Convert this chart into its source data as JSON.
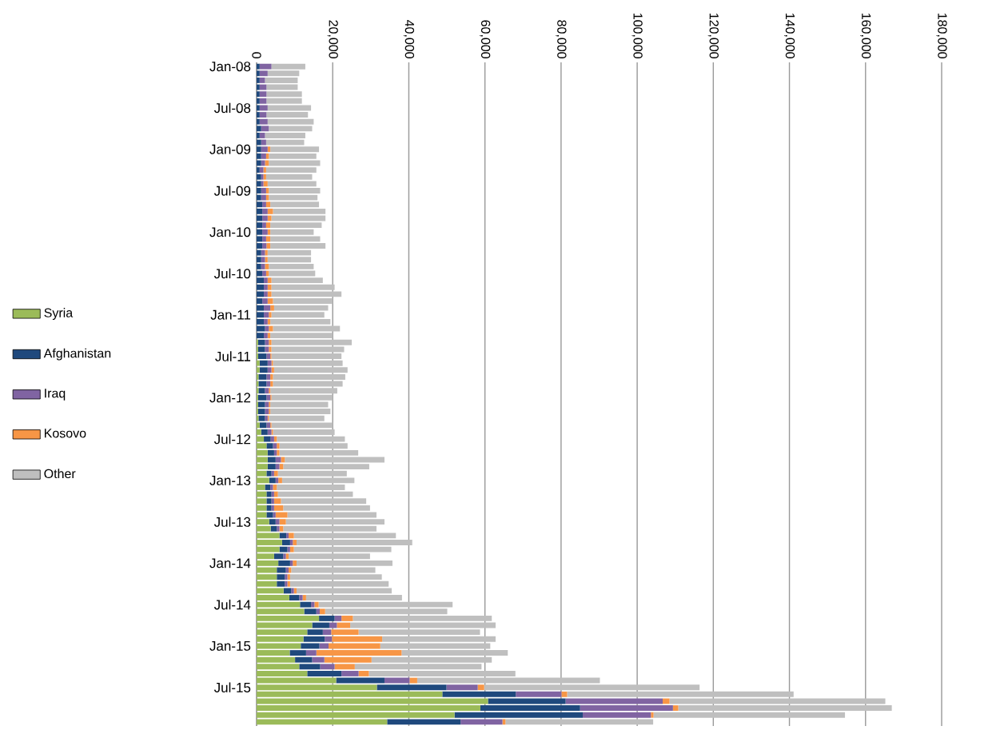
{
  "chart_data": {
    "type": "bar",
    "orientation": "horizontal",
    "stacked": true,
    "categories": [
      "Jan-08",
      null,
      null,
      null,
      null,
      null,
      "Jul-08",
      null,
      null,
      null,
      null,
      null,
      "Jan-09",
      null,
      null,
      null,
      null,
      null,
      "Jul-09",
      null,
      null,
      null,
      null,
      null,
      "Jan-10",
      null,
      null,
      null,
      null,
      null,
      "Jul-10",
      null,
      null,
      null,
      null,
      null,
      "Jan-11",
      null,
      null,
      null,
      null,
      null,
      "Jul-11",
      null,
      null,
      null,
      null,
      null,
      "Jan-12",
      null,
      null,
      null,
      null,
      null,
      "Jul-12",
      null,
      null,
      null,
      null,
      null,
      "Jan-13",
      null,
      null,
      null,
      null,
      null,
      "Jul-13",
      null,
      null,
      null,
      null,
      null,
      "Jan-14",
      null,
      null,
      null,
      null,
      null,
      "Jul-14",
      null,
      null,
      null,
      null,
      null,
      "Jan-15",
      null,
      null,
      null,
      null,
      null,
      "Jul-15",
      null,
      null,
      null,
      null,
      null
    ],
    "series": [
      {
        "name": "Syria",
        "color": "#9bbb59",
        "values": [
          0,
          0,
          0,
          0,
          0,
          0,
          0,
          0,
          0,
          0,
          0,
          0,
          0,
          0,
          0,
          0,
          0,
          0,
          0,
          0,
          0,
          0,
          0,
          0,
          0,
          0,
          0,
          0,
          0,
          0,
          0,
          0,
          0,
          0,
          0,
          0,
          0,
          0,
          0,
          0,
          400,
          400,
          400,
          800,
          800,
          500,
          500,
          500,
          400,
          400,
          400,
          500,
          800,
          1200,
          1900,
          2600,
          2900,
          2900,
          2900,
          2600,
          3300,
          2200,
          2600,
          2600,
          2600,
          2600,
          3300,
          3700,
          6000,
          6700,
          6000,
          4600,
          5700,
          5300,
          5300,
          5300,
          7100,
          8600,
          11400,
          12500,
          16400,
          14600,
          13300,
          12300,
          11600,
          8700,
          10100,
          11200,
          13300,
          20900,
          31600,
          48800,
          60800,
          58800,
          52000,
          34300
        ]
      },
      {
        "name": "Afghanistan",
        "color": "#1f497d",
        "values": [
          800,
          800,
          800,
          800,
          800,
          800,
          800,
          800,
          800,
          1200,
          800,
          1200,
          1200,
          1200,
          1200,
          800,
          1200,
          1200,
          1200,
          1200,
          1500,
          1500,
          1500,
          1500,
          1500,
          1500,
          1500,
          1200,
          1200,
          1200,
          1500,
          1900,
          1900,
          1900,
          1500,
          1900,
          1900,
          1900,
          2200,
          1900,
          1800,
          1800,
          2200,
          2100,
          2100,
          2100,
          2100,
          1700,
          2200,
          1800,
          1800,
          1700,
          1800,
          1700,
          1800,
          1700,
          1700,
          2100,
          2100,
          1300,
          1700,
          1400,
          1300,
          1300,
          1300,
          1700,
          1700,
          1600,
          1800,
          2100,
          2100,
          2400,
          3100,
          2400,
          2100,
          2100,
          2000,
          2600,
          2900,
          3200,
          4100,
          4500,
          4100,
          5600,
          4900,
          4300,
          4500,
          5500,
          9000,
          12700,
          18300,
          19300,
          20400,
          26200,
          33700,
          19300
        ]
      },
      {
        "name": "Iraq",
        "color": "#8064a2",
        "values": [
          3100,
          2100,
          1400,
          1800,
          1800,
          1800,
          2100,
          1800,
          2100,
          2000,
          1400,
          1300,
          1700,
          1300,
          1000,
          1000,
          600,
          600,
          1300,
          1300,
          1000,
          1400,
          1400,
          1000,
          1400,
          1000,
          1100,
          1000,
          1000,
          1000,
          1000,
          1000,
          1000,
          1000,
          1400,
          1700,
          1300,
          1000,
          1000,
          1000,
          1000,
          1000,
          1000,
          1000,
          1000,
          1000,
          1000,
          1000,
          1000,
          1000,
          1000,
          700,
          1000,
          1000,
          900,
          1000,
          700,
          1400,
          1000,
          700,
          700,
          700,
          700,
          700,
          700,
          700,
          1000,
          700,
          600,
          700,
          700,
          700,
          700,
          700,
          700,
          700,
          700,
          900,
          900,
          900,
          1800,
          2000,
          2200,
          1900,
          2400,
          2700,
          3200,
          3800,
          4500,
          6600,
          8200,
          12000,
          25500,
          24400,
          17900,
          11000
        ]
      },
      {
        "name": "Kosovo",
        "color": "#f79646",
        "values": [
          0,
          0,
          0,
          0,
          0,
          0,
          0,
          0,
          0,
          0,
          0,
          0,
          700,
          700,
          1000,
          700,
          700,
          1100,
          700,
          700,
          1100,
          1400,
          1000,
          1100,
          700,
          1100,
          1000,
          700,
          700,
          1000,
          700,
          1000,
          1000,
          1000,
          1400,
          1000,
          700,
          700,
          1100,
          700,
          700,
          700,
          300,
          400,
          700,
          700,
          700,
          400,
          300,
          400,
          400,
          300,
          300,
          400,
          700,
          700,
          700,
          1000,
          1000,
          1000,
          1000,
          1000,
          1000,
          1800,
          2400,
          3100,
          1700,
          1000,
          1400,
          1000,
          1000,
          700,
          1000,
          700,
          700,
          700,
          700,
          900,
          1100,
          1400,
          3000,
          3500,
          7200,
          13200,
          13600,
          22400,
          12400,
          5300,
          2700,
          2000,
          1700,
          1500,
          1800,
          1400,
          700,
          800
        ]
      },
      {
        "name": "Other",
        "color": "#bfbfbf",
        "values": [
          8900,
          8300,
          8600,
          8200,
          9300,
          9300,
          11400,
          10900,
          12100,
          11400,
          10600,
          10000,
          12800,
          12500,
          13500,
          13200,
          12100,
          12800,
          13500,
          12800,
          12800,
          13800,
          14200,
          13500,
          11400,
          13100,
          14500,
          11400,
          11400,
          11800,
          12200,
          13500,
          16600,
          18400,
          15700,
          14200,
          13900,
          15800,
          17600,
          16400,
          21100,
          19100,
          18400,
          18300,
          19300,
          19000,
          18300,
          17600,
          16100,
          15200,
          15800,
          14600,
          16100,
          16200,
          17900,
          17900,
          20700,
          26200,
          22600,
          18100,
          19000,
          17900,
          19700,
          22400,
          22800,
          23400,
          25900,
          24500,
          26800,
          30400,
          25600,
          21400,
          25200,
          22100,
          24100,
          25900,
          25000,
          25200,
          35200,
          32100,
          36500,
          38200,
          31900,
          29800,
          28900,
          27900,
          31600,
          33300,
          38500,
          48000,
          56600,
          59500,
          56700,
          56100,
          50300,
          38800
        ]
      }
    ],
    "xlim": [
      0,
      180000
    ],
    "xticks": [
      0,
      {
        "value": 20000,
        "label": "20,000"
      },
      {
        "value": 40000,
        "label": "40,000"
      },
      {
        "value": 60000,
        "label": "60,000"
      },
      {
        "value": 80000,
        "label": "80,000"
      },
      {
        "value": 100000,
        "label": "100,000"
      },
      {
        "value": 120000,
        "label": "120,000"
      },
      {
        "value": 140000,
        "label": "140,000"
      },
      {
        "value": 160000,
        "label": "160,000"
      },
      {
        "value": 180000,
        "label": "180,000"
      }
    ],
    "grid": "x",
    "legend": "left"
  }
}
